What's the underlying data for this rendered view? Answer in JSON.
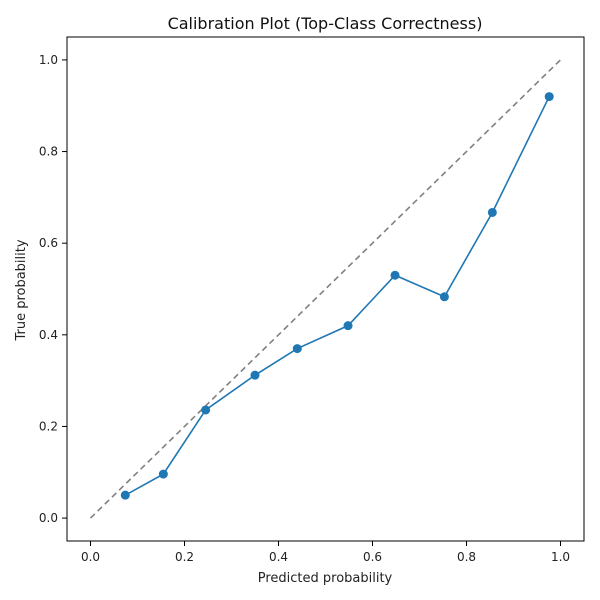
{
  "chart_data": {
    "type": "line",
    "title": "Calibration Plot (Top-Class Correctness)",
    "xlabel": "Predicted probability",
    "ylabel": "True probability",
    "xlim": [
      -0.05,
      1.05
    ],
    "ylim": [
      -0.05,
      1.05
    ],
    "xticks": [
      0.0,
      0.2,
      0.4,
      0.6,
      0.8,
      1.0
    ],
    "yticks": [
      0.0,
      0.2,
      0.4,
      0.6,
      0.8,
      1.0
    ],
    "xtick_labels": [
      "0.0",
      "0.2",
      "0.4",
      "0.6",
      "0.8",
      "1.0"
    ],
    "ytick_labels": [
      "0.0",
      "0.2",
      "0.4",
      "0.6",
      "0.8",
      "1.0"
    ],
    "grid": false,
    "legend": "none",
    "series": [
      {
        "style": "dashed",
        "color": "#808080",
        "x": [
          0.0,
          1.0
        ],
        "y": [
          0.0,
          1.0
        ]
      },
      {
        "style": "line-with-markers",
        "color": "#1f77b4",
        "x": [
          0.074,
          0.155,
          0.245,
          0.35,
          0.44,
          0.548,
          0.648,
          0.753,
          0.855,
          0.976
        ],
        "y": [
          0.05,
          0.096,
          0.236,
          0.312,
          0.37,
          0.42,
          0.53,
          0.483,
          0.667,
          0.92
        ]
      }
    ]
  }
}
